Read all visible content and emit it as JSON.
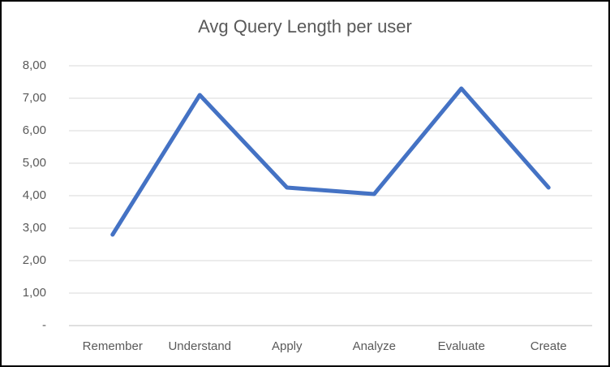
{
  "chart_data": {
    "type": "line",
    "title": "Avg Query Length per user",
    "categories": [
      "Remember",
      "Understand",
      "Apply",
      "Analyze",
      "Evaluate",
      "Create"
    ],
    "series": [
      {
        "name": "Avg Query Length",
        "values": [
          2.8,
          7.1,
          4.25,
          4.05,
          7.3,
          4.25
        ]
      }
    ],
    "xlabel": "",
    "ylabel": "",
    "ylim": [
      0,
      8
    ],
    "y_tick_labels": [
      "8,00",
      "7,00",
      "6,00",
      "5,00",
      "4,00",
      "3,00",
      "2,00",
      "1,00",
      "-"
    ],
    "y_tick_values": [
      8,
      7,
      6,
      5,
      4,
      3,
      2,
      1,
      0
    ],
    "grid": true,
    "legend": false,
    "markers": false,
    "colors": {
      "line": "#4472C4",
      "gridline": "#D9D9D9",
      "axis_line": "#BFBFBF",
      "text": "#595959",
      "background": "#FFFFFF",
      "frame_border": "#000000"
    }
  }
}
